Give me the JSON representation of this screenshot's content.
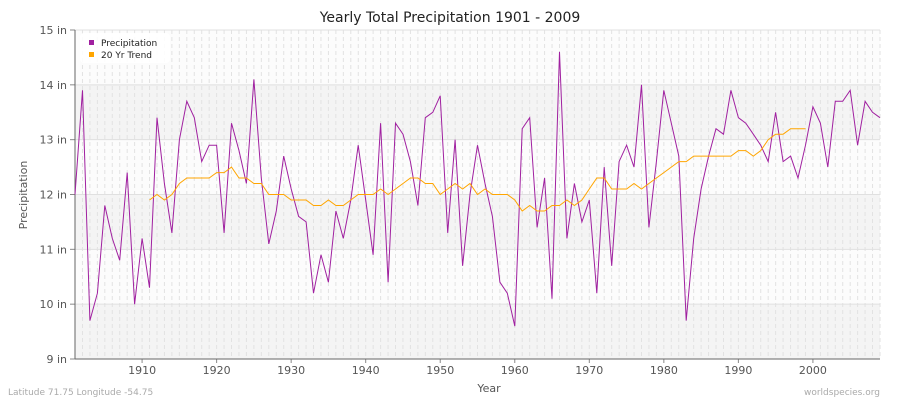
{
  "chart_data": {
    "type": "line",
    "title": "Yearly Total Precipitation 1901 - 2009",
    "xlabel": "Year",
    "ylabel": "Precipitation",
    "xlim": [
      1901,
      2009
    ],
    "ylim": [
      9,
      15
    ],
    "x_ticks": [
      1910,
      1920,
      1930,
      1940,
      1950,
      1960,
      1970,
      1980,
      1990,
      2000
    ],
    "y_ticks": [
      9,
      10,
      11,
      12,
      13,
      14,
      15
    ],
    "y_tick_labels": [
      "9 in",
      "10 in",
      "11 in",
      "12 in",
      "13 in",
      "14 in",
      "15 in"
    ],
    "grid": true,
    "legend_placement": "top-left",
    "series": [
      {
        "name": "Precipitation",
        "color": "#a020a0",
        "x_start": 1901,
        "values": [
          12.0,
          13.9,
          9.7,
          10.2,
          11.8,
          11.2,
          10.8,
          12.4,
          10.0,
          11.2,
          10.3,
          13.4,
          12.2,
          11.3,
          13.0,
          13.7,
          13.4,
          12.6,
          12.9,
          12.9,
          11.3,
          13.3,
          12.8,
          12.2,
          14.1,
          12.3,
          11.1,
          11.7,
          12.7,
          12.1,
          11.6,
          11.5,
          10.2,
          10.9,
          10.4,
          11.7,
          11.2,
          11.9,
          12.9,
          11.9,
          10.9,
          13.3,
          10.4,
          13.3,
          13.1,
          12.6,
          11.8,
          13.4,
          13.5,
          13.8,
          11.3,
          13.0,
          10.7,
          12.0,
          12.9,
          12.2,
          11.6,
          10.4,
          10.2,
          9.6,
          13.2,
          13.4,
          11.4,
          12.3,
          10.1,
          14.6,
          11.2,
          12.2,
          11.5,
          11.9,
          10.2,
          12.5,
          10.7,
          12.6,
          12.9,
          12.5,
          14.0,
          11.4,
          12.6,
          13.9,
          13.3,
          12.7,
          9.7,
          11.2,
          12.1,
          12.7,
          13.2,
          13.1,
          13.9,
          13.4,
          13.3,
          13.1,
          12.9,
          12.6,
          13.5,
          12.6,
          12.7,
          12.3,
          12.9,
          13.6,
          13.3,
          12.5,
          13.7,
          13.7,
          13.9,
          12.9,
          13.7,
          13.5,
          13.4
        ]
      },
      {
        "name": "20 Yr Trend",
        "color": "#ffa500",
        "x_start": 1911,
        "values": [
          11.9,
          12.0,
          11.9,
          12.0,
          12.2,
          12.3,
          12.3,
          12.3,
          12.3,
          12.4,
          12.4,
          12.5,
          12.3,
          12.3,
          12.2,
          12.2,
          12.0,
          12.0,
          12.0,
          11.9,
          11.9,
          11.9,
          11.8,
          11.8,
          11.9,
          11.8,
          11.8,
          11.9,
          12.0,
          12.0,
          12.0,
          12.1,
          12.0,
          12.1,
          12.2,
          12.3,
          12.3,
          12.2,
          12.2,
          12.0,
          12.1,
          12.2,
          12.1,
          12.2,
          12.0,
          12.1,
          12.0,
          12.0,
          12.0,
          11.9,
          11.7,
          11.8,
          11.7,
          11.7,
          11.8,
          11.8,
          11.9,
          11.8,
          11.9,
          12.1,
          12.3,
          12.3,
          12.1,
          12.1,
          12.1,
          12.2,
          12.1,
          12.2,
          12.3,
          12.4,
          12.5,
          12.6,
          12.6,
          12.7,
          12.7,
          12.7,
          12.7,
          12.7,
          12.7,
          12.8,
          12.8,
          12.7,
          12.8,
          13.0,
          13.1,
          13.1,
          13.2,
          13.2,
          13.2
        ]
      }
    ]
  },
  "footer": {
    "location": "Latitude 71.75 Longitude -54.75",
    "site": "worldspecies.org"
  }
}
